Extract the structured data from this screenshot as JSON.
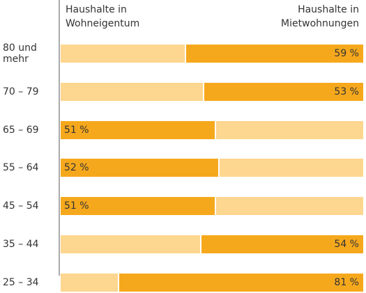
{
  "chart_data": {
    "type": "stacked_bar_100",
    "orientation": "horizontal",
    "categories": [
      "80 und mehr",
      "70 – 79",
      "65 – 69",
      "55 – 64",
      "45 – 54",
      "35 – 44",
      "25 – 34"
    ],
    "series": [
      {
        "name": "Haushalte in Wohneigentum",
        "values": [
          41,
          47,
          51,
          52,
          51,
          46,
          19
        ],
        "value_labels": [
          null,
          null,
          "51 %",
          "52 %",
          "51 %",
          null,
          null
        ]
      },
      {
        "name": "Haushalte in Mietwohnungen",
        "values": [
          59,
          53,
          49,
          48,
          49,
          54,
          81
        ],
        "value_labels": [
          "59 %",
          "53 %",
          null,
          null,
          null,
          "54 %",
          "81 %"
        ]
      }
    ],
    "majority_color": "#f6a81c",
    "minority_color": "#fdd68f"
  }
}
